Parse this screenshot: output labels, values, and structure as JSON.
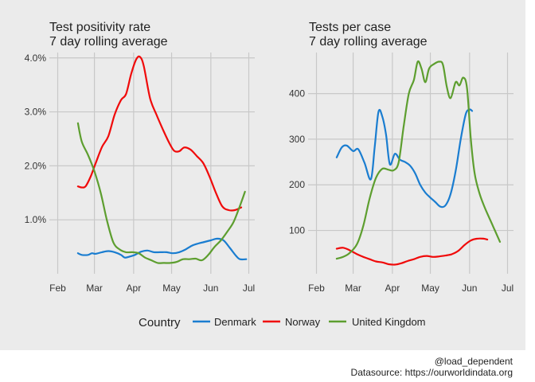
{
  "chart_data": [
    {
      "type": "line",
      "title": "Test positivity rate",
      "subtitle": "7 day rolling average",
      "xlabel": "",
      "ylabel": "",
      "x_ticks": [
        "Feb",
        "Mar",
        "Apr",
        "May",
        "Jun",
        "Jul"
      ],
      "x_tick_days": [
        0,
        29,
        60,
        90,
        121,
        151
      ],
      "y_ticks": [
        1.0,
        2.0,
        3.0,
        4.0
      ],
      "y_tick_labels": [
        "1.0%",
        "2.0%",
        "3.0%",
        "4.0%"
      ],
      "y_range": [
        0.0,
        4.1
      ],
      "grid": true,
      "series": [
        {
          "name": "Denmark",
          "points": [
            [
              "2020-02-17",
              0.38
            ],
            [
              "2020-02-20",
              0.35
            ],
            [
              "2020-02-25",
              0.35
            ],
            [
              "2020-02-28",
              0.38
            ],
            [
              "2020-03-02",
              0.37
            ],
            [
              "2020-03-07",
              0.4
            ],
            [
              "2020-03-12",
              0.42
            ],
            [
              "2020-03-17",
              0.4
            ],
            [
              "2020-03-22",
              0.35
            ],
            [
              "2020-03-25",
              0.3
            ],
            [
              "2020-03-29",
              0.32
            ],
            [
              "2020-04-02",
              0.35
            ],
            [
              "2020-04-07",
              0.41
            ],
            [
              "2020-04-12",
              0.43
            ],
            [
              "2020-04-17",
              0.4
            ],
            [
              "2020-04-22",
              0.4
            ],
            [
              "2020-04-27",
              0.4
            ],
            [
              "2020-05-02",
              0.38
            ],
            [
              "2020-05-07",
              0.4
            ],
            [
              "2020-05-12",
              0.45
            ],
            [
              "2020-05-17",
              0.52
            ],
            [
              "2020-05-22",
              0.56
            ],
            [
              "2020-05-27",
              0.59
            ],
            [
              "2020-06-01",
              0.62
            ],
            [
              "2020-06-06",
              0.65
            ],
            [
              "2020-06-11",
              0.62
            ],
            [
              "2020-06-16",
              0.48
            ],
            [
              "2020-06-21",
              0.33
            ],
            [
              "2020-06-24",
              0.27
            ],
            [
              "2020-06-29",
              0.27
            ]
          ]
        },
        {
          "name": "Norway",
          "points": [
            [
              "2020-02-17",
              1.62
            ],
            [
              "2020-02-20",
              1.6
            ],
            [
              "2020-02-23",
              1.62
            ],
            [
              "2020-02-27",
              1.8
            ],
            [
              "2020-03-02",
              2.05
            ],
            [
              "2020-03-07",
              2.35
            ],
            [
              "2020-03-12",
              2.55
            ],
            [
              "2020-03-17",
              2.95
            ],
            [
              "2020-03-22",
              3.22
            ],
            [
              "2020-03-26",
              3.33
            ],
            [
              "2020-03-30",
              3.7
            ],
            [
              "2020-04-03",
              3.97
            ],
            [
              "2020-04-06",
              4.02
            ],
            [
              "2020-04-09",
              3.85
            ],
            [
              "2020-04-14",
              3.25
            ],
            [
              "2020-04-19",
              2.95
            ],
            [
              "2020-04-24",
              2.68
            ],
            [
              "2020-04-29",
              2.43
            ],
            [
              "2020-05-03",
              2.28
            ],
            [
              "2020-05-07",
              2.27
            ],
            [
              "2020-05-11",
              2.34
            ],
            [
              "2020-05-16",
              2.3
            ],
            [
              "2020-05-21",
              2.18
            ],
            [
              "2020-05-26",
              2.05
            ],
            [
              "2020-05-31",
              1.8
            ],
            [
              "2020-06-05",
              1.5
            ],
            [
              "2020-06-10",
              1.25
            ],
            [
              "2020-06-15",
              1.18
            ],
            [
              "2020-06-20",
              1.18
            ],
            [
              "2020-06-25",
              1.23
            ]
          ]
        },
        {
          "name": "United Kingdom",
          "points": [
            [
              "2020-02-17",
              2.79
            ],
            [
              "2020-02-20",
              2.45
            ],
            [
              "2020-02-25",
              2.2
            ],
            [
              "2020-03-01",
              1.9
            ],
            [
              "2020-03-06",
              1.5
            ],
            [
              "2020-03-11",
              0.98
            ],
            [
              "2020-03-16",
              0.58
            ],
            [
              "2020-03-21",
              0.45
            ],
            [
              "2020-03-26",
              0.4
            ],
            [
              "2020-03-31",
              0.4
            ],
            [
              "2020-04-05",
              0.38
            ],
            [
              "2020-04-10",
              0.3
            ],
            [
              "2020-04-15",
              0.25
            ],
            [
              "2020-04-20",
              0.2
            ],
            [
              "2020-04-25",
              0.2
            ],
            [
              "2020-04-30",
              0.2
            ],
            [
              "2020-05-05",
              0.22
            ],
            [
              "2020-05-10",
              0.27
            ],
            [
              "2020-05-15",
              0.27
            ],
            [
              "2020-05-20",
              0.28
            ],
            [
              "2020-05-25",
              0.25
            ],
            [
              "2020-05-30",
              0.35
            ],
            [
              "2020-06-04",
              0.5
            ],
            [
              "2020-06-09",
              0.62
            ],
            [
              "2020-06-14",
              0.78
            ],
            [
              "2020-06-19",
              0.96
            ],
            [
              "2020-06-24",
              1.26
            ],
            [
              "2020-06-28",
              1.52
            ]
          ]
        }
      ]
    },
    {
      "type": "line",
      "title": "Tests per case",
      "subtitle": "7 day rolling average",
      "xlabel": "",
      "ylabel": "",
      "x_ticks": [
        "Feb",
        "Mar",
        "Apr",
        "May",
        "Jun",
        "Jul"
      ],
      "x_tick_days": [
        0,
        29,
        60,
        90,
        121,
        151
      ],
      "y_ticks": [
        100,
        200,
        300,
        400
      ],
      "y_tick_labels": [
        "100",
        "200",
        "300",
        "400"
      ],
      "y_range": [
        5,
        490
      ],
      "grid": true,
      "series": [
        {
          "name": "Denmark",
          "points": [
            [
              "2020-02-17",
              260
            ],
            [
              "2020-02-21",
              282
            ],
            [
              "2020-02-25",
              286
            ],
            [
              "2020-03-01",
              274
            ],
            [
              "2020-03-05",
              278
            ],
            [
              "2020-03-10",
              248
            ],
            [
              "2020-03-15",
              212
            ],
            [
              "2020-03-18",
              282
            ],
            [
              "2020-03-21",
              360
            ],
            [
              "2020-03-24",
              350
            ],
            [
              "2020-03-27",
              310
            ],
            [
              "2020-03-30",
              245
            ],
            [
              "2020-04-03",
              268
            ],
            [
              "2020-04-07",
              255
            ],
            [
              "2020-04-11",
              250
            ],
            [
              "2020-04-15",
              242
            ],
            [
              "2020-04-19",
              225
            ],
            [
              "2020-04-23",
              200
            ],
            [
              "2020-04-27",
              183
            ],
            [
              "2020-05-01",
              172
            ],
            [
              "2020-05-05",
              162
            ],
            [
              "2020-05-09",
              152
            ],
            [
              "2020-05-13",
              155
            ],
            [
              "2020-05-17",
              180
            ],
            [
              "2020-05-21",
              230
            ],
            [
              "2020-05-25",
              300
            ],
            [
              "2020-05-29",
              355
            ],
            [
              "2020-06-01",
              365
            ],
            [
              "2020-06-03",
              362
            ]
          ]
        },
        {
          "name": "Norway",
          "points": [
            [
              "2020-02-17",
              60
            ],
            [
              "2020-02-22",
              62
            ],
            [
              "2020-02-27",
              57
            ],
            [
              "2020-03-04",
              48
            ],
            [
              "2020-03-09",
              42
            ],
            [
              "2020-03-14",
              37
            ],
            [
              "2020-03-19",
              32
            ],
            [
              "2020-03-24",
              30
            ],
            [
              "2020-03-29",
              26
            ],
            [
              "2020-04-03",
              25
            ],
            [
              "2020-04-08",
              28
            ],
            [
              "2020-04-13",
              33
            ],
            [
              "2020-04-18",
              37
            ],
            [
              "2020-04-23",
              42
            ],
            [
              "2020-04-28",
              44
            ],
            [
              "2020-05-03",
              42
            ],
            [
              "2020-05-08",
              43
            ],
            [
              "2020-05-13",
              45
            ],
            [
              "2020-05-18",
              48
            ],
            [
              "2020-05-23",
              55
            ],
            [
              "2020-05-28",
              68
            ],
            [
              "2020-06-02",
              78
            ],
            [
              "2020-06-07",
              82
            ],
            [
              "2020-06-12",
              82
            ],
            [
              "2020-06-15",
              80
            ]
          ]
        },
        {
          "name": "United Kingdom",
          "points": [
            [
              "2020-02-17",
              38
            ],
            [
              "2020-02-22",
              42
            ],
            [
              "2020-02-27",
              50
            ],
            [
              "2020-03-04",
              70
            ],
            [
              "2020-03-09",
              110
            ],
            [
              "2020-03-14",
              170
            ],
            [
              "2020-03-19",
              215
            ],
            [
              "2020-03-24",
              235
            ],
            [
              "2020-03-29",
              233
            ],
            [
              "2020-04-02",
              232
            ],
            [
              "2020-04-06",
              250
            ],
            [
              "2020-04-10",
              330
            ],
            [
              "2020-04-14",
              400
            ],
            [
              "2020-04-18",
              430
            ],
            [
              "2020-04-21",
              470
            ],
            [
              "2020-04-24",
              455
            ],
            [
              "2020-04-27",
              425
            ],
            [
              "2020-04-30",
              455
            ],
            [
              "2020-05-04",
              465
            ],
            [
              "2020-05-08",
              470
            ],
            [
              "2020-05-11",
              463
            ],
            [
              "2020-05-14",
              415
            ],
            [
              "2020-05-17",
              390
            ],
            [
              "2020-05-21",
              425
            ],
            [
              "2020-05-24",
              418
            ],
            [
              "2020-05-27",
              435
            ],
            [
              "2020-05-30",
              412
            ],
            [
              "2020-06-02",
              300
            ],
            [
              "2020-06-05",
              225
            ],
            [
              "2020-06-09",
              180
            ],
            [
              "2020-06-13",
              150
            ],
            [
              "2020-06-17",
              125
            ],
            [
              "2020-06-21",
              100
            ],
            [
              "2020-06-25",
              75
            ]
          ]
        }
      ]
    }
  ],
  "legend": {
    "title": "Country",
    "items": [
      {
        "label": "Denmark",
        "color": "#1a7dd0"
      },
      {
        "label": "Norway",
        "color": "#f00a0a"
      },
      {
        "label": "United Kingdom",
        "color": "#5d9e2f"
      }
    ]
  },
  "caption": {
    "line1": "@load_dependent",
    "line2": "Datasource: https://ourworldindata.org"
  }
}
